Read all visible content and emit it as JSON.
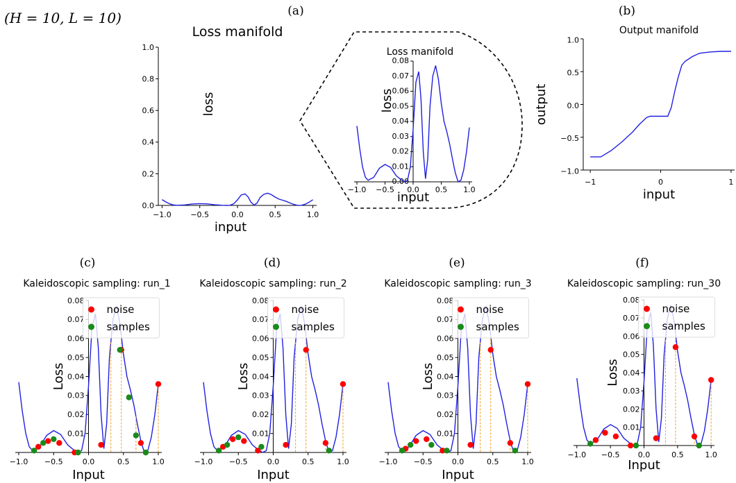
{
  "figure": {
    "header": "(H = 10, L = 10)"
  },
  "chart_data": [
    {
      "id": "a_main",
      "panel_letter": "(a)",
      "type": "line",
      "title": "Loss manifold",
      "xlabel": "input",
      "ylabel": "loss",
      "xlim": [
        -1.05,
        1.05
      ],
      "ylim": [
        0.0,
        1.0
      ],
      "xticks": [
        -1.0,
        -0.5,
        0.0,
        0.5,
        1.0
      ],
      "xtick_labels": [
        "−1.0",
        "−0.5",
        "0.0",
        "0.5",
        "1.0"
      ],
      "yticks": [
        0.0,
        0.2,
        0.4,
        0.6,
        0.8,
        1.0
      ],
      "ytick_labels": [
        "0.0",
        "0.2",
        "0.4",
        "0.6",
        "0.8",
        "1.0"
      ],
      "series": [
        {
          "color": "#1f1fe0",
          "x": [
            -1.0,
            -0.95,
            -0.9,
            -0.85,
            -0.8,
            -0.7,
            -0.6,
            -0.5,
            -0.4,
            -0.3,
            -0.2,
            -0.15,
            -0.1,
            -0.05,
            0.0,
            0.05,
            0.1,
            0.14,
            0.18,
            0.22,
            0.26,
            0.3,
            0.35,
            0.4,
            0.45,
            0.5,
            0.55,
            0.6,
            0.65,
            0.7,
            0.75,
            0.8,
            0.85,
            0.9,
            0.95,
            1.0
          ],
          "y": [
            0.037,
            0.022,
            0.01,
            0.003,
            0.001,
            0.003,
            0.009,
            0.0115,
            0.0095,
            0.004,
            0.001,
            0.0,
            0.001,
            0.01,
            0.035,
            0.066,
            0.073,
            0.055,
            0.02,
            0.002,
            0.015,
            0.05,
            0.07,
            0.077,
            0.068,
            0.052,
            0.04,
            0.033,
            0.025,
            0.015,
            0.006,
            0.0,
            0.001,
            0.008,
            0.02,
            0.036
          ]
        }
      ]
    },
    {
      "id": "a_zoom",
      "type": "line",
      "title": "Loss manifold",
      "xlabel": "input",
      "ylabel": "loss",
      "xlim": [
        -1.05,
        1.05
      ],
      "ylim": [
        0.0,
        0.08
      ],
      "xticks": [
        -1.0,
        -0.5,
        0.0,
        0.5,
        1.0
      ],
      "xtick_labels": [
        "−1.0",
        "−0.5",
        "0.0",
        "0.5",
        "1.0"
      ],
      "yticks": [
        0.0,
        0.01,
        0.02,
        0.03,
        0.04,
        0.05,
        0.06,
        0.07,
        0.08
      ],
      "ytick_labels": [
        "0.00",
        "0.01",
        "0.02",
        "0.03",
        "0.04",
        "0.05",
        "0.06",
        "0.07",
        "0.08"
      ],
      "series": [
        {
          "color": "#1f1fe0",
          "x": [
            -1.0,
            -0.95,
            -0.9,
            -0.85,
            -0.8,
            -0.7,
            -0.6,
            -0.5,
            -0.4,
            -0.3,
            -0.2,
            -0.15,
            -0.1,
            -0.05,
            0.0,
            0.05,
            0.1,
            0.14,
            0.18,
            0.22,
            0.26,
            0.3,
            0.35,
            0.4,
            0.45,
            0.5,
            0.55,
            0.6,
            0.65,
            0.7,
            0.75,
            0.8,
            0.85,
            0.9,
            0.95,
            1.0
          ],
          "y": [
            0.037,
            0.022,
            0.01,
            0.003,
            0.001,
            0.003,
            0.009,
            0.0115,
            0.0095,
            0.004,
            0.001,
            0.0,
            0.001,
            0.01,
            0.035,
            0.066,
            0.073,
            0.055,
            0.02,
            0.002,
            0.015,
            0.05,
            0.07,
            0.077,
            0.068,
            0.052,
            0.04,
            0.033,
            0.025,
            0.015,
            0.006,
            0.0,
            0.001,
            0.008,
            0.02,
            0.036
          ]
        }
      ]
    },
    {
      "id": "b_output",
      "panel_letter": "(b)",
      "type": "line",
      "title": "Output manifold",
      "xlabel": "input",
      "ylabel": "output",
      "xlim": [
        -1.1,
        1.05
      ],
      "ylim": [
        -1.0,
        1.0
      ],
      "xticks": [
        -1,
        0,
        1
      ],
      "xtick_labels": [
        "−1",
        "0",
        "1"
      ],
      "yticks": [
        -1.0,
        -0.5,
        0.0,
        0.5,
        1.0
      ],
      "ytick_labels": [
        "−1.0",
        "−0.5",
        "0.0",
        "0.5",
        "1.0"
      ],
      "series": [
        {
          "color": "#1f1fe0",
          "x": [
            -1.0,
            -0.85,
            -0.7,
            -0.55,
            -0.4,
            -0.3,
            -0.2,
            -0.15,
            -0.1,
            0.0,
            0.1,
            0.15,
            0.2,
            0.25,
            0.3,
            0.35,
            0.45,
            0.55,
            0.7,
            0.85,
            1.0
          ],
          "y": [
            -0.8,
            -0.8,
            -0.7,
            -0.57,
            -0.42,
            -0.3,
            -0.2,
            -0.18,
            -0.18,
            -0.18,
            -0.18,
            -0.05,
            0.2,
            0.42,
            0.6,
            0.66,
            0.73,
            0.78,
            0.8,
            0.81,
            0.81
          ]
        }
      ]
    },
    {
      "id": "c_run1",
      "panel_letter": "(c)",
      "type": "scatter",
      "title": "Kaleidoscopic sampling: run_1",
      "xlabel": "Input",
      "ylabel": "Loss",
      "xlim": [
        -1.05,
        1.05
      ],
      "ylim": [
        0.0,
        0.08
      ],
      "xticks": [
        -1.0,
        -0.5,
        0.0,
        0.5,
        1.0
      ],
      "xtick_labels": [
        "−1.0",
        "−0.5",
        "0.0",
        "0.5",
        "1.0"
      ],
      "yticks": [
        0.01,
        0.02,
        0.03,
        0.04,
        0.05,
        0.06,
        0.07,
        0.08
      ],
      "ytick_labels": [
        "0.01",
        "0.02",
        "0.03",
        "0.04",
        "0.05",
        "0.06",
        "0.07",
        "0.08"
      ],
      "legend": {
        "entries": [
          "noise",
          "samples"
        ],
        "colors": [
          "#ff0000",
          "#1a8a1a"
        ]
      },
      "noise": {
        "x": [
          -0.72,
          -0.58,
          -0.42,
          -0.2,
          0.18,
          0.47,
          0.75,
          1.0
        ],
        "y": [
          0.003,
          0.006,
          0.005,
          0.0,
          0.004,
          0.054,
          0.005,
          0.036
        ]
      },
      "samples": {
        "x": [
          -0.78,
          -0.65,
          -0.5,
          -0.15,
          0.82,
          0.68,
          0.58,
          0.45
        ],
        "y": [
          0.001,
          0.005,
          0.007,
          0.0,
          0.0,
          0.009,
          0.029,
          0.054
        ]
      },
      "dashed_x": [
        0.32,
        0.47,
        0.68,
        1.0
      ],
      "curve": {
        "x": [
          -1.0,
          -0.95,
          -0.9,
          -0.85,
          -0.8,
          -0.7,
          -0.6,
          -0.5,
          -0.4,
          -0.3,
          -0.2,
          -0.15,
          -0.1,
          -0.05,
          0.0,
          0.05,
          0.1,
          0.14,
          0.18,
          0.22,
          0.26,
          0.3,
          0.35,
          0.4,
          0.45,
          0.5,
          0.55,
          0.6,
          0.65,
          0.7,
          0.75,
          0.8,
          0.85,
          0.9,
          0.95,
          1.0
        ],
        "y": [
          0.037,
          0.022,
          0.01,
          0.003,
          0.001,
          0.003,
          0.009,
          0.0115,
          0.0095,
          0.004,
          0.001,
          0.0,
          0.001,
          0.01,
          0.035,
          0.066,
          0.073,
          0.055,
          0.02,
          0.002,
          0.015,
          0.05,
          0.07,
          0.077,
          0.068,
          0.052,
          0.04,
          0.033,
          0.025,
          0.015,
          0.006,
          0.0,
          0.001,
          0.008,
          0.02,
          0.036
        ]
      }
    },
    {
      "id": "d_run2",
      "panel_letter": "(d)",
      "type": "scatter",
      "title": "Kaleidoscopic sampling: run_2",
      "xlabel": "Input",
      "ylabel": "Loss",
      "xlim": [
        -1.05,
        1.05
      ],
      "ylim": [
        0.0,
        0.08
      ],
      "xticks": [
        -1.0,
        -0.5,
        0.0,
        0.5,
        1.0
      ],
      "xtick_labels": [
        "−1.0",
        "−0.5",
        "0.0",
        "0.5",
        "1.0"
      ],
      "yticks": [
        0.01,
        0.02,
        0.03,
        0.04,
        0.05,
        0.06,
        0.07,
        0.08
      ],
      "ytick_labels": [
        "0.01",
        "0.02",
        "0.03",
        "0.04",
        "0.05",
        "0.06",
        "0.07",
        "0.08"
      ],
      "legend": {
        "entries": [
          "noise",
          "samples"
        ],
        "colors": [
          "#ff0000",
          "#1a8a1a"
        ]
      },
      "noise": {
        "x": [
          -0.72,
          -0.58,
          -0.42,
          -0.22,
          0.18,
          0.47,
          0.75,
          1.0
        ],
        "y": [
          0.003,
          0.007,
          0.006,
          0.001,
          0.004,
          0.054,
          0.005,
          0.036
        ]
      },
      "samples": {
        "x": [
          -0.78,
          -0.66,
          -0.5,
          -0.17,
          0.8
        ],
        "y": [
          0.001,
          0.004,
          0.008,
          0.003,
          0.001
        ]
      },
      "dashed_x": [
        0.32,
        0.47,
        0.75,
        1.0
      ],
      "curve": {
        "x": [
          -1.0,
          -0.95,
          -0.9,
          -0.85,
          -0.8,
          -0.7,
          -0.6,
          -0.5,
          -0.4,
          -0.3,
          -0.2,
          -0.15,
          -0.1,
          -0.05,
          0.0,
          0.05,
          0.1,
          0.14,
          0.18,
          0.22,
          0.26,
          0.3,
          0.35,
          0.4,
          0.45,
          0.5,
          0.55,
          0.6,
          0.65,
          0.7,
          0.75,
          0.8,
          0.85,
          0.9,
          0.95,
          1.0
        ],
        "y": [
          0.037,
          0.022,
          0.01,
          0.003,
          0.001,
          0.003,
          0.009,
          0.0115,
          0.0095,
          0.004,
          0.001,
          0.0,
          0.001,
          0.01,
          0.035,
          0.066,
          0.073,
          0.055,
          0.02,
          0.002,
          0.015,
          0.05,
          0.07,
          0.077,
          0.068,
          0.052,
          0.04,
          0.033,
          0.025,
          0.015,
          0.006,
          0.0,
          0.001,
          0.008,
          0.02,
          0.036
        ]
      }
    },
    {
      "id": "e_run3",
      "panel_letter": "(e)",
      "type": "scatter",
      "title": "Kaleidoscopic sampling: run_3",
      "xlabel": "Input",
      "ylabel": "Loss",
      "xlim": [
        -1.05,
        1.05
      ],
      "ylim": [
        0.0,
        0.08
      ],
      "xticks": [
        -1.0,
        -0.5,
        0.0,
        0.5,
        1.0
      ],
      "xtick_labels": [
        "−1.0",
        "−0.5",
        "0.0",
        "0.5",
        "1.0"
      ],
      "yticks": [
        0.01,
        0.02,
        0.03,
        0.04,
        0.05,
        0.06,
        0.07,
        0.08
      ],
      "ytick_labels": [
        "0.01",
        "0.02",
        "0.03",
        "0.04",
        "0.05",
        "0.06",
        "0.07",
        "0.08"
      ],
      "legend": {
        "entries": [
          "noise",
          "samples"
        ],
        "colors": [
          "#ff0000",
          "#1a8a1a"
        ]
      },
      "noise": {
        "x": [
          -0.75,
          -0.6,
          -0.45,
          -0.22,
          0.18,
          0.47,
          0.75,
          1.0
        ],
        "y": [
          0.002,
          0.006,
          0.007,
          0.001,
          0.004,
          0.054,
          0.005,
          0.036
        ]
      },
      "samples": {
        "x": [
          -0.8,
          -0.68,
          -0.38,
          -0.16,
          0.82
        ],
        "y": [
          0.001,
          0.004,
          0.004,
          0.001,
          0.001
        ]
      },
      "dashed_x": [
        0.32,
        0.47,
        0.75,
        1.0
      ],
      "curve": {
        "x": [
          -1.0,
          -0.95,
          -0.9,
          -0.85,
          -0.8,
          -0.7,
          -0.6,
          -0.5,
          -0.4,
          -0.3,
          -0.2,
          -0.15,
          -0.1,
          -0.05,
          0.0,
          0.05,
          0.1,
          0.14,
          0.18,
          0.22,
          0.26,
          0.3,
          0.35,
          0.4,
          0.45,
          0.5,
          0.55,
          0.6,
          0.65,
          0.7,
          0.75,
          0.8,
          0.85,
          0.9,
          0.95,
          1.0
        ],
        "y": [
          0.037,
          0.022,
          0.01,
          0.003,
          0.001,
          0.003,
          0.009,
          0.0115,
          0.0095,
          0.004,
          0.001,
          0.0,
          0.001,
          0.01,
          0.035,
          0.066,
          0.073,
          0.055,
          0.02,
          0.002,
          0.015,
          0.05,
          0.07,
          0.077,
          0.068,
          0.052,
          0.04,
          0.033,
          0.025,
          0.015,
          0.006,
          0.0,
          0.001,
          0.008,
          0.02,
          0.036
        ]
      }
    },
    {
      "id": "f_run30",
      "panel_letter": "(f)",
      "type": "scatter",
      "title": "Kaleidoscopic sampling: run_30",
      "xlabel": "Input",
      "ylabel": "Loss",
      "xlim": [
        -1.05,
        1.05
      ],
      "ylim": [
        0.0,
        0.08
      ],
      "xticks": [
        -1.0,
        -0.5,
        0.0,
        0.5,
        1.0
      ],
      "xtick_labels": [
        "−1.0",
        "−0.5",
        "0.0",
        "0.5",
        "1.0"
      ],
      "yticks": [
        0.01,
        0.02,
        0.03,
        0.04,
        0.05,
        0.06,
        0.07,
        0.08
      ],
      "ytick_labels": [
        "0.01",
        "0.02",
        "0.03",
        "0.04",
        "0.05",
        "0.06",
        "0.07",
        "0.08"
      ],
      "legend": {
        "entries": [
          "noise",
          "samples"
        ],
        "colors": [
          "#ff0000",
          "#1a8a1a"
        ]
      },
      "noise": {
        "x": [
          -0.72,
          -0.58,
          -0.42,
          -0.2,
          0.18,
          0.47,
          0.75,
          1.0
        ],
        "y": [
          0.003,
          0.007,
          0.005,
          0.0,
          0.004,
          0.054,
          0.005,
          0.036
        ]
      },
      "samples": {
        "x": [
          -0.8,
          -0.12,
          0.82
        ],
        "y": [
          0.001,
          0.0,
          0.0
        ]
      },
      "dashed_x": [
        0.32,
        0.47,
        0.75,
        1.0
      ],
      "curve": {
        "x": [
          -1.0,
          -0.95,
          -0.9,
          -0.85,
          -0.8,
          -0.7,
          -0.6,
          -0.5,
          -0.4,
          -0.3,
          -0.2,
          -0.15,
          -0.1,
          -0.05,
          0.0,
          0.05,
          0.1,
          0.14,
          0.18,
          0.22,
          0.26,
          0.3,
          0.35,
          0.4,
          0.45,
          0.5,
          0.55,
          0.6,
          0.65,
          0.7,
          0.75,
          0.8,
          0.85,
          0.9,
          0.95,
          1.0
        ],
        "y": [
          0.037,
          0.022,
          0.01,
          0.003,
          0.001,
          0.003,
          0.009,
          0.0115,
          0.0095,
          0.004,
          0.001,
          0.0,
          0.001,
          0.01,
          0.035,
          0.066,
          0.073,
          0.055,
          0.02,
          0.002,
          0.015,
          0.05,
          0.07,
          0.077,
          0.068,
          0.052,
          0.04,
          0.033,
          0.025,
          0.015,
          0.006,
          0.0,
          0.001,
          0.008,
          0.02,
          0.036
        ]
      }
    }
  ]
}
